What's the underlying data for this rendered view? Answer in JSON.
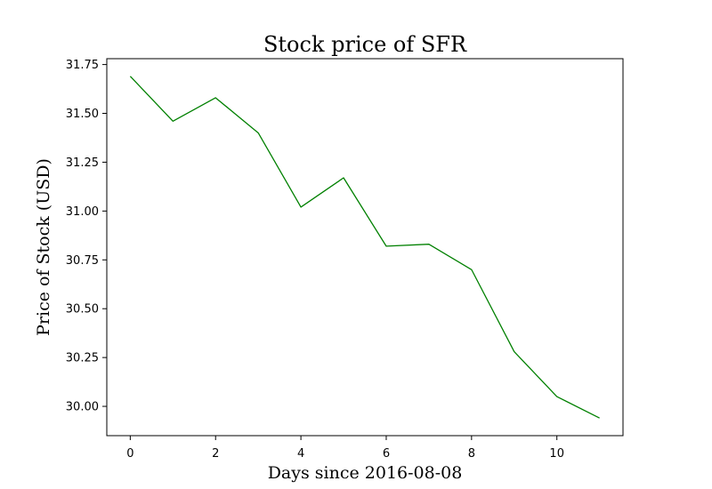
{
  "chart_data": {
    "type": "line",
    "title": "Stock price of SFR",
    "xlabel": "Days since 2016-08-08",
    "ylabel": "Price of Stock (USD)",
    "x": [
      0,
      1,
      2,
      3,
      4,
      5,
      6,
      7,
      8,
      9,
      10,
      11
    ],
    "series": [
      {
        "values": [
          31.69,
          31.46,
          31.58,
          31.4,
          31.02,
          31.17,
          30.82,
          30.83,
          30.7,
          30.28,
          30.05,
          29.94
        ],
        "color": "#008000"
      }
    ],
    "xlim": [
      -0.55,
      11.55
    ],
    "ylim": [
      29.85,
      31.78
    ],
    "xticks": [
      0,
      2,
      4,
      6,
      8,
      10
    ],
    "xtick_labels": [
      "0",
      "2",
      "4",
      "6",
      "8",
      "10"
    ],
    "yticks": [
      30.0,
      30.25,
      30.5,
      30.75,
      31.0,
      31.25,
      31.5,
      31.75
    ],
    "ytick_labels": [
      "30.00",
      "30.25",
      "30.50",
      "30.75",
      "31.00",
      "31.25",
      "31.50",
      "31.75"
    ],
    "grid": false,
    "legend": false
  }
}
